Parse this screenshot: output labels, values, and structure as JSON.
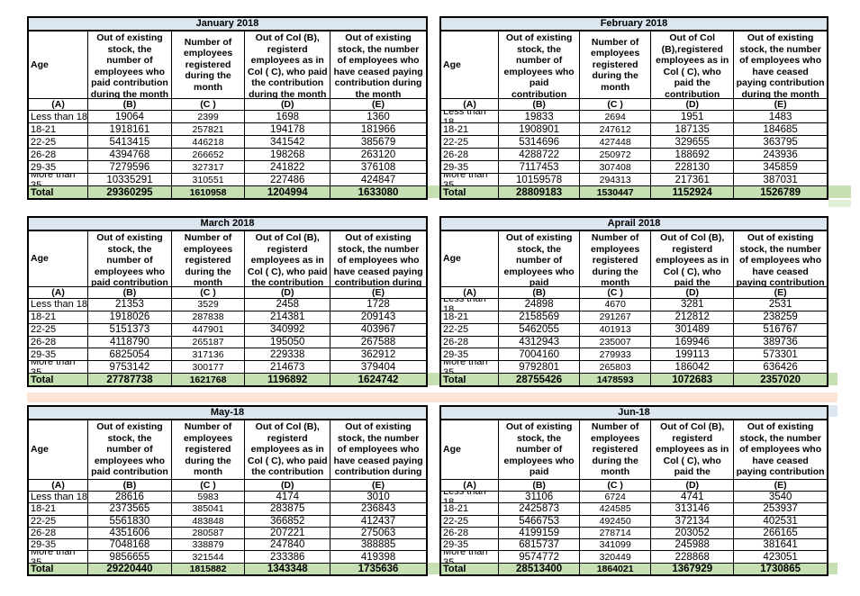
{
  "colors": {
    "month_header_bg": "#DCE6F1",
    "total_row_bg": "#C6E0B4",
    "divider_band": "#FCE4D6",
    "spill_light_green": "#E2EFDA",
    "border": "#000000"
  },
  "shared": {
    "age_label": "Age",
    "letters": [
      "(A)",
      "(B)",
      "(C )",
      "(D)",
      "(E)"
    ]
  },
  "tables": [
    {
      "title": "January 2018",
      "headers": {
        "b": "Out of existing stock, the number of employees who paid contribution during the month",
        "c": "Number of employees registered during the month",
        "d": "Out of Col (B), registerd employees as in Col ( C), who paid the contribution during the month",
        "e": "Out of existing stock, the number of employees who have ceased paying contribution during the month"
      },
      "rows": [
        {
          "age": "Less than 18",
          "b": "19064",
          "c": "2399",
          "d": "1698",
          "e": "1360"
        },
        {
          "age": "18-21",
          "b": "1918161",
          "c": "257821",
          "d": "194178",
          "e": "181966"
        },
        {
          "age": "22-25",
          "b": "5413415",
          "c": "446218",
          "d": "341542",
          "e": "385679"
        },
        {
          "age": "26-28",
          "b": "4394768",
          "c": "266652",
          "d": "198268",
          "e": "263120"
        },
        {
          "age": "29-35",
          "b": "7279596",
          "c": "327317",
          "d": "241822",
          "e": "376108"
        },
        {
          "age": "More than 35",
          "b": "10335291",
          "c": "310551",
          "d": "227486",
          "e": "424847"
        }
      ],
      "total": {
        "label": "Total",
        "b": "29360295",
        "c": "1610958",
        "d": "1204994",
        "e": "1633080"
      }
    },
    {
      "title": "February 2018",
      "headers": {
        "b": "Out of existing stock, the number of employees who paid contribution during the month",
        "c": "Number of employees registered during the month",
        "d": "Out of Col (B),registered employees as in Col ( C), who paid the contribution during the month",
        "e": "Out of existing stock, the number of employees who have ceased paying contribution during the month"
      },
      "rows": [
        {
          "age": "Less than 18",
          "b": "19833",
          "c": "2694",
          "d": "1951",
          "e": "1483"
        },
        {
          "age": "18-21",
          "b": "1908901",
          "c": "247612",
          "d": "187135",
          "e": "184685"
        },
        {
          "age": "22-25",
          "b": "5314696",
          "c": "427448",
          "d": "329655",
          "e": "363795"
        },
        {
          "age": "26-28",
          "b": "4288722",
          "c": "250972",
          "d": "188692",
          "e": "243936"
        },
        {
          "age": "29-35",
          "b": "7117453",
          "c": "307408",
          "d": "228130",
          "e": "345859"
        },
        {
          "age": "More than 35",
          "b": "10159578",
          "c": "294313",
          "d": "217361",
          "e": "387031"
        }
      ],
      "total": {
        "label": "Total",
        "b": "28809183",
        "c": "1530447",
        "d": "1152924",
        "e": "1526789"
      }
    },
    {
      "title": "March 2018",
      "headers": {
        "b": "Out of existing stock, the number of employees who paid contribution during the month",
        "c": "Number of employees registered during the month",
        "d": "Out of Col (B), registerd employees as in Col ( C), who paid the contribution during the month",
        "e": "Out of existing stock, the number of employees who have ceased paying contribution during the month"
      },
      "rows": [
        {
          "age": "Less than 18",
          "b": "21353",
          "c": "3529",
          "d": "2458",
          "e": "1728"
        },
        {
          "age": "18-21",
          "b": "1918026",
          "c": "287838",
          "d": "214381",
          "e": "209143"
        },
        {
          "age": "22-25",
          "b": "5151373",
          "c": "447901",
          "d": "340992",
          "e": "403967"
        },
        {
          "age": "26-28",
          "b": "4118790",
          "c": "265187",
          "d": "195050",
          "e": "267588"
        },
        {
          "age": "29-35",
          "b": "6825054",
          "c": "317136",
          "d": "229338",
          "e": "362912"
        },
        {
          "age": "More than 35",
          "b": "9753142",
          "c": "300177",
          "d": "214673",
          "e": "379404"
        }
      ],
      "total": {
        "label": "Total",
        "b": "27787738",
        "c": "1621768",
        "d": "1196892",
        "e": "1624742"
      }
    },
    {
      "title": "Aprail 2018",
      "headers": {
        "b": "Out of existing stock, the number of employees who paid contribution during the month",
        "c": "Number of employees registered during the month",
        "d": "Out of Col (B), registerd employees as in Col ( C), who paid the contribution during the month",
        "e": "Out of existing stock, the number of employees who have ceased paying contribution during the month"
      },
      "rows": [
        {
          "age": "Less than 18",
          "b": "24898",
          "c": "4670",
          "d": "3281",
          "e": "2531"
        },
        {
          "age": "18-21",
          "b": "2158569",
          "c": "291267",
          "d": "212812",
          "e": "238259"
        },
        {
          "age": "22-25",
          "b": "5462055",
          "c": "401913",
          "d": "301489",
          "e": "516767"
        },
        {
          "age": "26-28",
          "b": "4312943",
          "c": "235007",
          "d": "169946",
          "e": "389736"
        },
        {
          "age": "29-35",
          "b": "7004160",
          "c": "279933",
          "d": "199113",
          "e": "573301"
        },
        {
          "age": "More than 35",
          "b": "9792801",
          "c": "265803",
          "d": "186042",
          "e": "636426"
        }
      ],
      "total": {
        "label": "Total",
        "b": "28755426",
        "c": "1478593",
        "d": "1072683",
        "e": "2357020"
      }
    },
    {
      "title": "May-18",
      "headers": {
        "b": "Out of existing stock, the number of employees who paid contribution during the month",
        "c": "Number of employees registered during the month",
        "d": "Out of Col (B), registerd employees as in Col ( C), who paid the contribution during the month",
        "e": "Out of existing stock, the number of employees who have ceased paying contribution during the month"
      },
      "rows": [
        {
          "age": "Less than 18",
          "b": "28616",
          "c": "5983",
          "d": "4174",
          "e": "3010"
        },
        {
          "age": "18-21",
          "b": "2373565",
          "c": "385041",
          "d": "283875",
          "e": "236843"
        },
        {
          "age": "22-25",
          "b": "5561830",
          "c": "483848",
          "d": "366852",
          "e": "412437"
        },
        {
          "age": "26-28",
          "b": "4351606",
          "c": "280587",
          "d": "207221",
          "e": "275063"
        },
        {
          "age": "29-35",
          "b": "7048168",
          "c": "338879",
          "d": "247840",
          "e": "388885"
        },
        {
          "age": "More than 35",
          "b": "9856655",
          "c": "321544",
          "d": "233386",
          "e": "419398"
        }
      ],
      "total": {
        "label": "Total",
        "b": "29220440",
        "c": "1815882",
        "d": "1343348",
        "e": "1735636"
      }
    },
    {
      "title": "Jun-18",
      "headers": {
        "b": "Out of existing stock, the number of employees who paid contribution during the month",
        "c": "Number of employees registered during the month",
        "d": "Out of Col (B), registerd employees as in Col ( C), who paid the contribution during the month",
        "e": "Out of existing stock, the number of employees who have ceased paying contribution during the month"
      },
      "rows": [
        {
          "age": "Less than 18",
          "b": "31106",
          "c": "6724",
          "d": "4741",
          "e": "3540"
        },
        {
          "age": "18-21",
          "b": "2425873",
          "c": "424585",
          "d": "313146",
          "e": "253937"
        },
        {
          "age": "22-25",
          "b": "5466753",
          "c": "492450",
          "d": "372134",
          "e": "402531"
        },
        {
          "age": "26-28",
          "b": "4199159",
          "c": "278714",
          "d": "203052",
          "e": "266165"
        },
        {
          "age": "29-35",
          "b": "6815737",
          "c": "341099",
          "d": "245988",
          "e": "381641"
        },
        {
          "age": "More than 35",
          "b": "9574772",
          "c": "320449",
          "d": "228868",
          "e": "423051"
        }
      ],
      "total": {
        "label": "Total",
        "b": "28513400",
        "c": "1864021",
        "d": "1367929",
        "e": "1730865"
      }
    }
  ]
}
